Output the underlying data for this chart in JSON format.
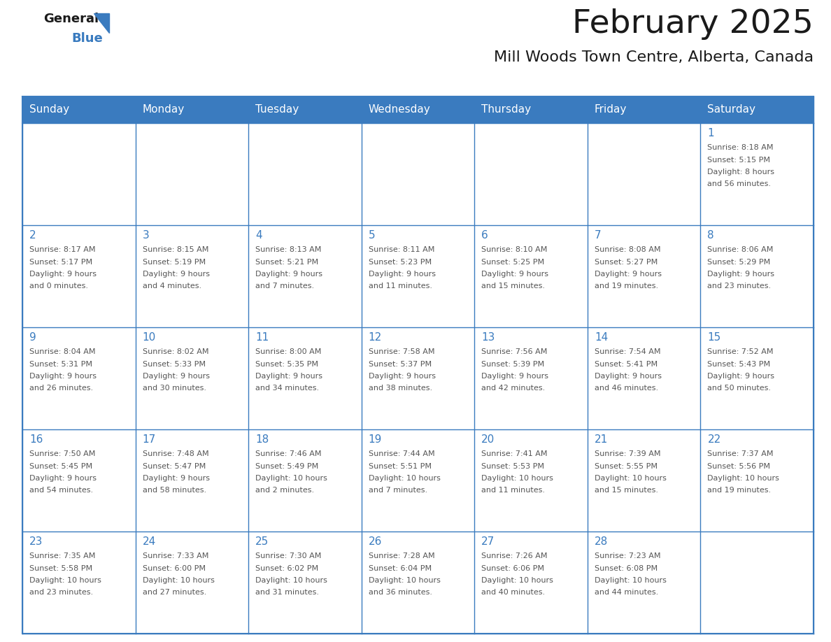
{
  "title": "February 2025",
  "subtitle": "Mill Woods Town Centre, Alberta, Canada",
  "header_bg": "#3a7bbf",
  "header_text": "#ffffff",
  "cell_bg": "#ffffff",
  "border_color": "#3a7bbf",
  "day_names": [
    "Sunday",
    "Monday",
    "Tuesday",
    "Wednesday",
    "Thursday",
    "Friday",
    "Saturday"
  ],
  "title_color": "#1a1a1a",
  "subtitle_color": "#1a1a1a",
  "day_number_color": "#3a7bbf",
  "cell_text_color": "#555555",
  "logo_general_color": "#1a1a1a",
  "logo_blue_color": "#3a7bbf",
  "weeks": [
    [
      {
        "day": null,
        "info": ""
      },
      {
        "day": null,
        "info": ""
      },
      {
        "day": null,
        "info": ""
      },
      {
        "day": null,
        "info": ""
      },
      {
        "day": null,
        "info": ""
      },
      {
        "day": null,
        "info": ""
      },
      {
        "day": 1,
        "info": "Sunrise: 8:18 AM\nSunset: 5:15 PM\nDaylight: 8 hours\nand 56 minutes."
      }
    ],
    [
      {
        "day": 2,
        "info": "Sunrise: 8:17 AM\nSunset: 5:17 PM\nDaylight: 9 hours\nand 0 minutes."
      },
      {
        "day": 3,
        "info": "Sunrise: 8:15 AM\nSunset: 5:19 PM\nDaylight: 9 hours\nand 4 minutes."
      },
      {
        "day": 4,
        "info": "Sunrise: 8:13 AM\nSunset: 5:21 PM\nDaylight: 9 hours\nand 7 minutes."
      },
      {
        "day": 5,
        "info": "Sunrise: 8:11 AM\nSunset: 5:23 PM\nDaylight: 9 hours\nand 11 minutes."
      },
      {
        "day": 6,
        "info": "Sunrise: 8:10 AM\nSunset: 5:25 PM\nDaylight: 9 hours\nand 15 minutes."
      },
      {
        "day": 7,
        "info": "Sunrise: 8:08 AM\nSunset: 5:27 PM\nDaylight: 9 hours\nand 19 minutes."
      },
      {
        "day": 8,
        "info": "Sunrise: 8:06 AM\nSunset: 5:29 PM\nDaylight: 9 hours\nand 23 minutes."
      }
    ],
    [
      {
        "day": 9,
        "info": "Sunrise: 8:04 AM\nSunset: 5:31 PM\nDaylight: 9 hours\nand 26 minutes."
      },
      {
        "day": 10,
        "info": "Sunrise: 8:02 AM\nSunset: 5:33 PM\nDaylight: 9 hours\nand 30 minutes."
      },
      {
        "day": 11,
        "info": "Sunrise: 8:00 AM\nSunset: 5:35 PM\nDaylight: 9 hours\nand 34 minutes."
      },
      {
        "day": 12,
        "info": "Sunrise: 7:58 AM\nSunset: 5:37 PM\nDaylight: 9 hours\nand 38 minutes."
      },
      {
        "day": 13,
        "info": "Sunrise: 7:56 AM\nSunset: 5:39 PM\nDaylight: 9 hours\nand 42 minutes."
      },
      {
        "day": 14,
        "info": "Sunrise: 7:54 AM\nSunset: 5:41 PM\nDaylight: 9 hours\nand 46 minutes."
      },
      {
        "day": 15,
        "info": "Sunrise: 7:52 AM\nSunset: 5:43 PM\nDaylight: 9 hours\nand 50 minutes."
      }
    ],
    [
      {
        "day": 16,
        "info": "Sunrise: 7:50 AM\nSunset: 5:45 PM\nDaylight: 9 hours\nand 54 minutes."
      },
      {
        "day": 17,
        "info": "Sunrise: 7:48 AM\nSunset: 5:47 PM\nDaylight: 9 hours\nand 58 minutes."
      },
      {
        "day": 18,
        "info": "Sunrise: 7:46 AM\nSunset: 5:49 PM\nDaylight: 10 hours\nand 2 minutes."
      },
      {
        "day": 19,
        "info": "Sunrise: 7:44 AM\nSunset: 5:51 PM\nDaylight: 10 hours\nand 7 minutes."
      },
      {
        "day": 20,
        "info": "Sunrise: 7:41 AM\nSunset: 5:53 PM\nDaylight: 10 hours\nand 11 minutes."
      },
      {
        "day": 21,
        "info": "Sunrise: 7:39 AM\nSunset: 5:55 PM\nDaylight: 10 hours\nand 15 minutes."
      },
      {
        "day": 22,
        "info": "Sunrise: 7:37 AM\nSunset: 5:56 PM\nDaylight: 10 hours\nand 19 minutes."
      }
    ],
    [
      {
        "day": 23,
        "info": "Sunrise: 7:35 AM\nSunset: 5:58 PM\nDaylight: 10 hours\nand 23 minutes."
      },
      {
        "day": 24,
        "info": "Sunrise: 7:33 AM\nSunset: 6:00 PM\nDaylight: 10 hours\nand 27 minutes."
      },
      {
        "day": 25,
        "info": "Sunrise: 7:30 AM\nSunset: 6:02 PM\nDaylight: 10 hours\nand 31 minutes."
      },
      {
        "day": 26,
        "info": "Sunrise: 7:28 AM\nSunset: 6:04 PM\nDaylight: 10 hours\nand 36 minutes."
      },
      {
        "day": 27,
        "info": "Sunrise: 7:26 AM\nSunset: 6:06 PM\nDaylight: 10 hours\nand 40 minutes."
      },
      {
        "day": 28,
        "info": "Sunrise: 7:23 AM\nSunset: 6:08 PM\nDaylight: 10 hours\nand 44 minutes."
      },
      {
        "day": null,
        "info": ""
      }
    ]
  ],
  "fig_width": 11.88,
  "fig_height": 9.18,
  "dpi": 100
}
